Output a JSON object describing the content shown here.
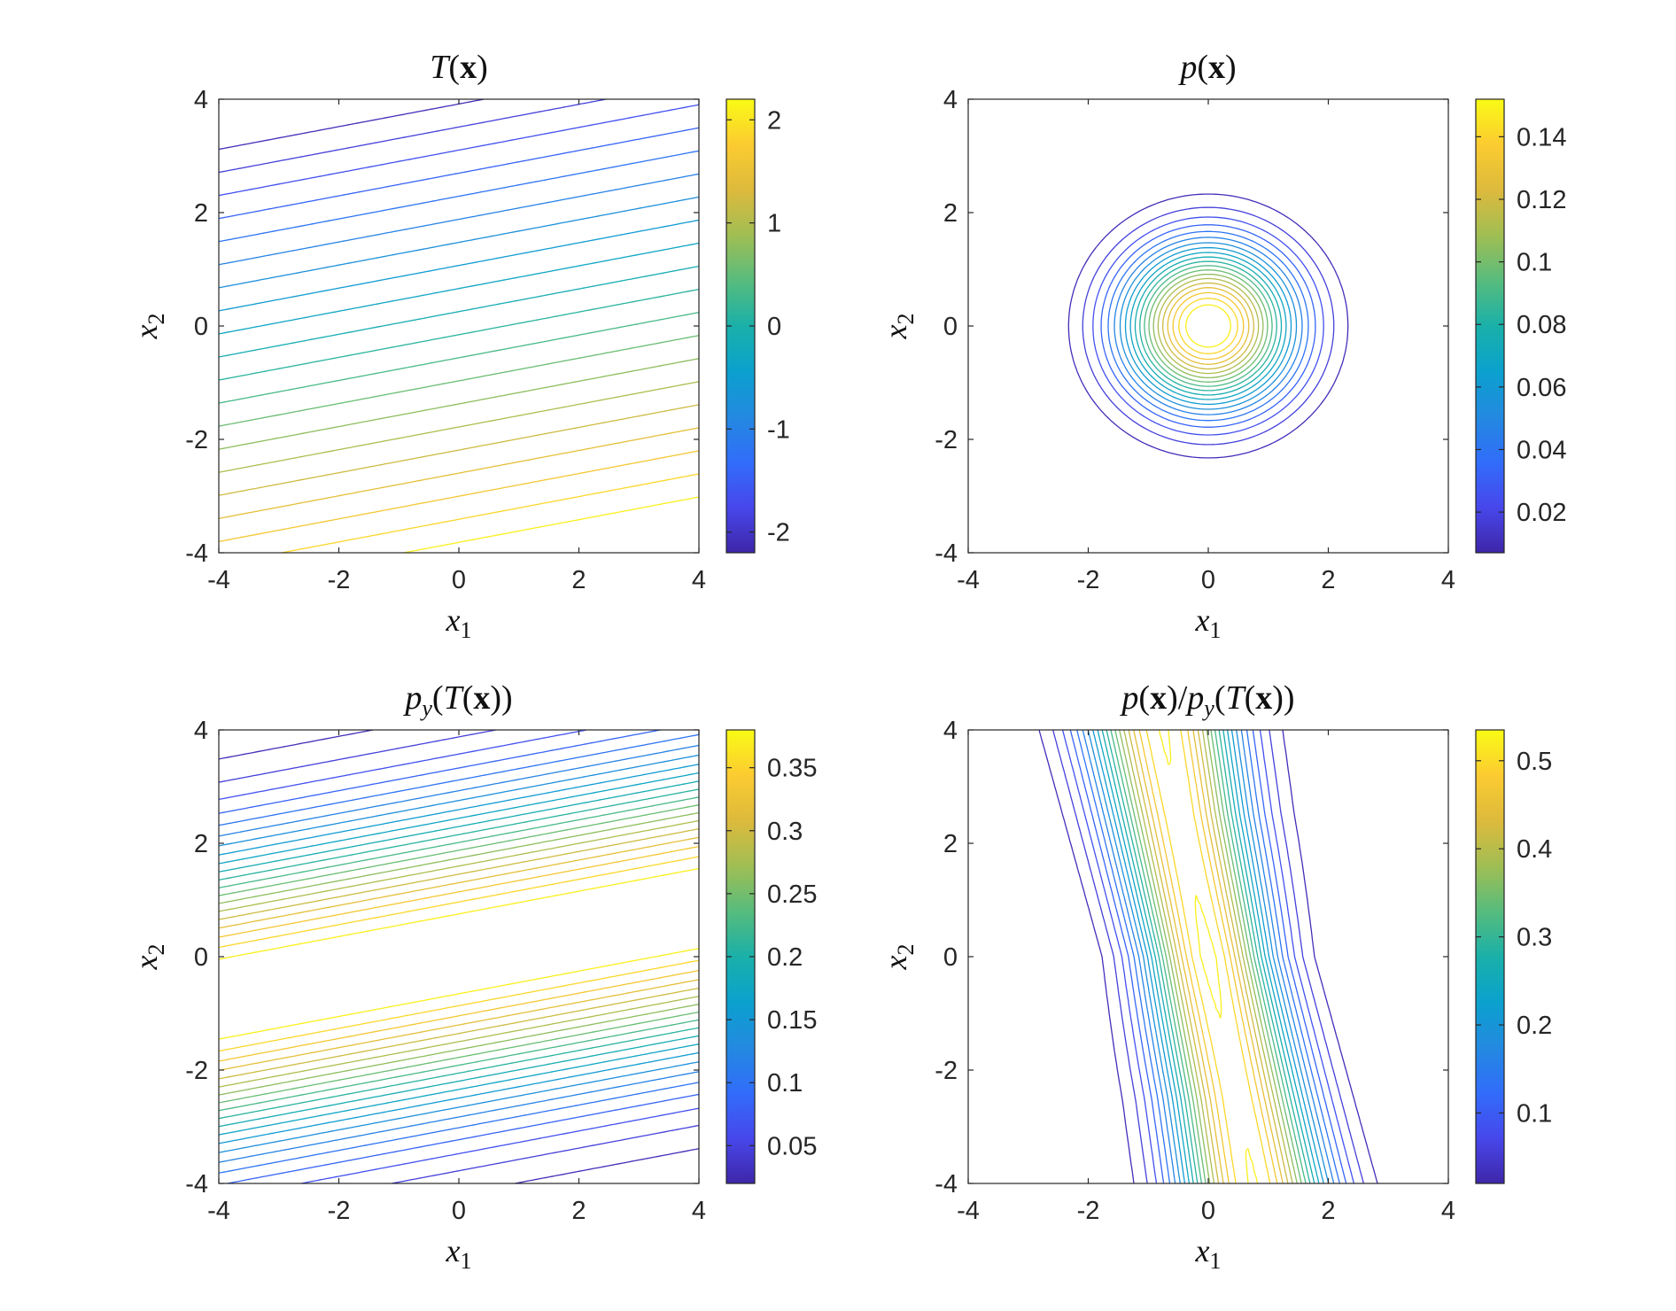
{
  "chart_data": [
    {
      "type": "contour",
      "id": "T",
      "title": "T(x)",
      "xlabel": "x1",
      "ylabel": "x2",
      "xlim": [
        -4,
        4
      ],
      "ylim": [
        -4,
        4
      ],
      "xticks": [
        "-4",
        "-2",
        "0",
        "2",
        "4"
      ],
      "yticks": [
        "-4",
        "-2",
        "0",
        "2",
        "4"
      ],
      "colorbar": {
        "range": [
          -2.2,
          2.2
        ],
        "ticks": [
          -2,
          -1,
          0,
          1,
          2
        ],
        "tick_labels": [
          "-2",
          "-1",
          "0",
          "1",
          "2"
        ]
      },
      "field": "T(x) = (x2 - 0.20*x1 - 0.05) / -1.85 approximately (linear, parallel level lines)",
      "num_levels": 20,
      "colormap": "parula"
    },
    {
      "type": "contour",
      "id": "p",
      "title": "p(x)",
      "xlabel": "x1",
      "ylabel": "x2",
      "xlim": [
        -4,
        4
      ],
      "ylim": [
        -4,
        4
      ],
      "xticks": [
        "-4",
        "-2",
        "0",
        "2",
        "4"
      ],
      "yticks": [
        "-4",
        "-2",
        "0",
        "2",
        "4"
      ],
      "colorbar": {
        "range": [
          0.007,
          0.152
        ],
        "ticks": [
          0.02,
          0.04,
          0.06,
          0.08,
          0.1,
          0.12,
          0.14
        ],
        "tick_labels": [
          "0.02",
          "0.04",
          "0.06",
          "0.08",
          "0.1",
          "0.12",
          "0.14"
        ]
      },
      "field": "p(x) = standard bivariate normal density",
      "num_levels": 20,
      "colormap": "parula"
    },
    {
      "type": "contour",
      "id": "py",
      "title": "p_y(T(x))",
      "xlabel": "x1",
      "ylabel": "x2",
      "xlim": [
        -4,
        4
      ],
      "ylim": [
        -4,
        4
      ],
      "xticks": [
        "-4",
        "-2",
        "0",
        "2",
        "4"
      ],
      "yticks": [
        "-4",
        "-2",
        "0",
        "2",
        "4"
      ],
      "colorbar": {
        "range": [
          0.02,
          0.38
        ],
        "ticks": [
          0.05,
          0.1,
          0.15,
          0.2,
          0.25,
          0.3,
          0.35
        ],
        "tick_labels": [
          "0.05",
          "0.1",
          "0.15",
          "0.2",
          "0.25",
          "0.3",
          "0.35"
        ]
      },
      "field": "normal density of T(x)",
      "num_levels": 20,
      "colormap": "parula"
    },
    {
      "type": "contour",
      "id": "ratio",
      "title": "p(x)/p_y(T(x))",
      "xlabel": "x1",
      "ylabel": "x2",
      "xlim": [
        -4,
        4
      ],
      "ylim": [
        -4,
        4
      ],
      "xticks": [
        "-4",
        "-2",
        "0",
        "2",
        "4"
      ],
      "yticks": [
        "-4",
        "-2",
        "0",
        "2",
        "4"
      ],
      "colorbar": {
        "range": [
          0.02,
          0.535
        ],
        "ticks": [
          0.1,
          0.2,
          0.3,
          0.4,
          0.5
        ],
        "tick_labels": [
          "0.1",
          "0.2",
          "0.3",
          "0.4",
          "0.5"
        ]
      },
      "field": "ratio of p(x) to p_y(T(x))",
      "num_levels": 20,
      "colormap": "parula"
    }
  ],
  "texts": {
    "t1_main": "T",
    "t1_arg": "x",
    "t2_main": "p",
    "t2_arg": "x",
    "t3_main": "p",
    "t3_sub": "y",
    "t3_inner": "T",
    "t3_arg": "x",
    "t4_main": "p",
    "t4_arg": "x",
    "t4_div": "p",
    "t4_sub": "y",
    "t4_inner": "T",
    "t4_arg2": "x",
    "xl_main": "x",
    "xl_sub": "1",
    "yl_main": "x",
    "yl_sub": "2"
  }
}
